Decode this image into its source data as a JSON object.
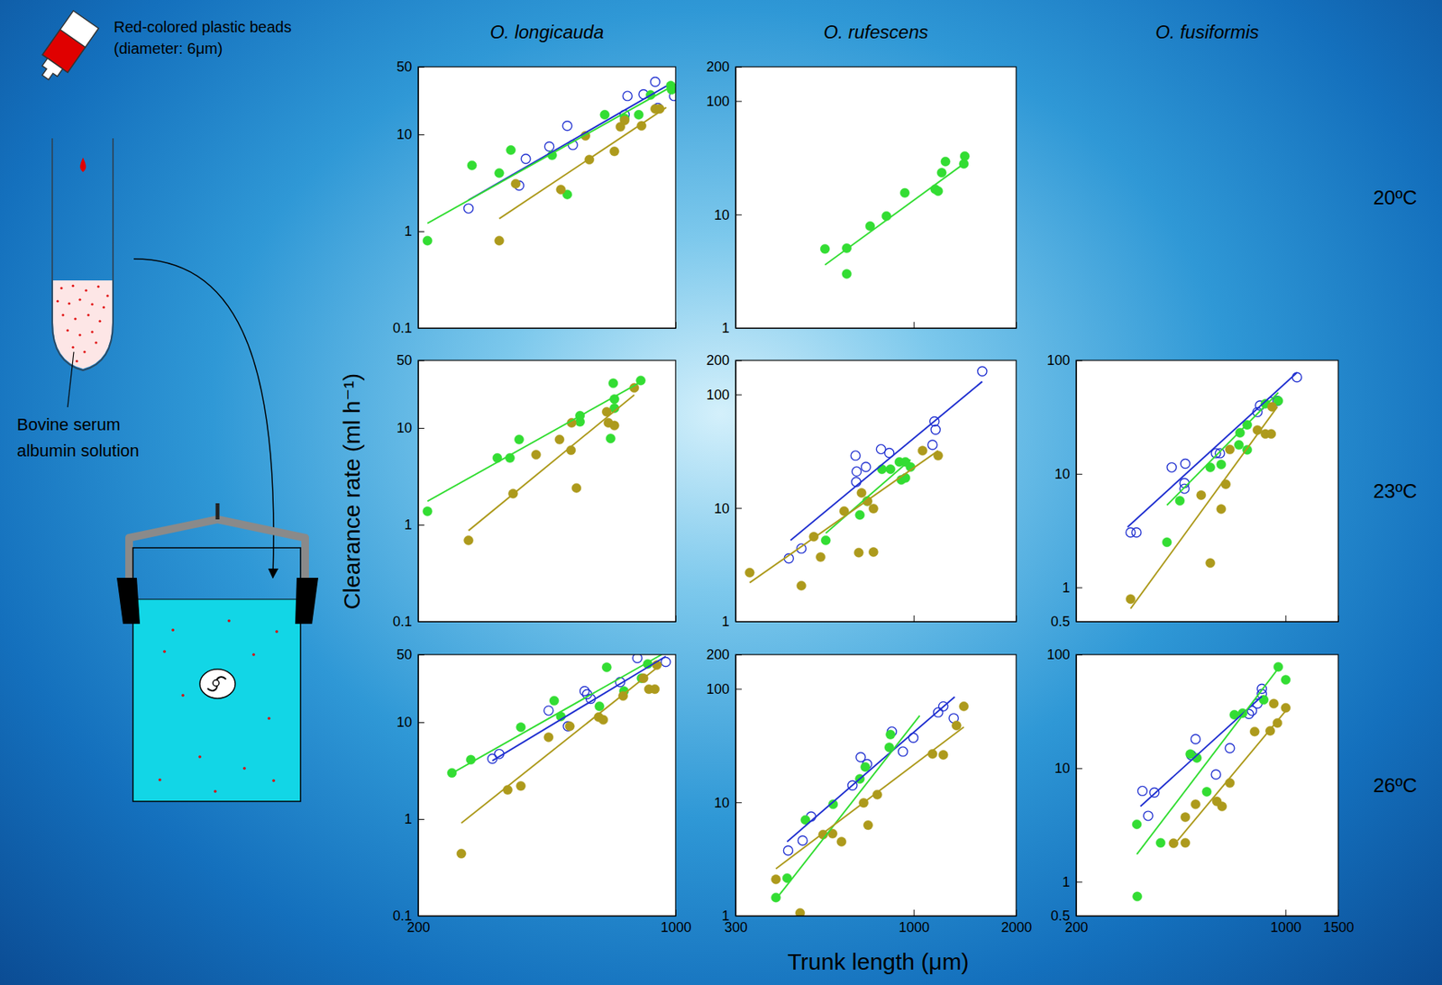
{
  "figure": {
    "column_titles": [
      "O. longicauda",
      "O. rufescens",
      "O. fusiformis"
    ],
    "row_titles": [
      "20ºC",
      "23ºC",
      "26ºC"
    ],
    "y_label": "Clearance rate (ml h⁻¹)",
    "x_label": "Trunk length (μm)"
  },
  "diagram": {
    "beads_label": [
      "Red-colored plastic beads",
      "(diameter: 6μm)"
    ],
    "bsa_label": [
      "Bovine serum",
      "albumin solution"
    ]
  },
  "chart_data": [
    {
      "type": "scatter",
      "log": true,
      "tick_labels": "y",
      "xlim": [
        200,
        1000
      ],
      "xticks": [
        200,
        1000
      ],
      "ylim": [
        0.1,
        50
      ],
      "yticks": [
        0.1,
        1,
        10,
        50
      ],
      "series": [
        {
          "color": "#2030d0",
          "marker": "open-circle",
          "x": [
            274,
            376,
            392,
            454,
            508,
            526,
            727,
            740,
            818,
            880,
            895,
            990
          ],
          "values": [
            1.72,
            2.97,
            5.6,
            7.5,
            12.3,
            7.8,
            16,
            25,
            26,
            35,
            18.8,
            25
          ]
        },
        {
          "color": "#33dd33",
          "marker": "circle",
          "x": [
            212,
            280,
            332,
            357,
            462,
            508,
            642,
            727,
            794,
            855,
            970,
            975
          ],
          "values": [
            0.8,
            4.8,
            4.0,
            6.9,
            6.1,
            2.4,
            16,
            14.7,
            16,
            25.6,
            32,
            29
          ]
        },
        {
          "color": "#ad9a1c",
          "marker": "circle",
          "x": [
            332,
            368,
            488,
            569,
            583,
            682,
            708,
            727,
            808,
            880,
            905
          ],
          "values": [
            0.8,
            3.1,
            2.7,
            9.7,
            5.5,
            6.7,
            12,
            14,
            12.3,
            18.4,
            18.4
          ]
        },
        {
          "type": "line",
          "line_style": "solid",
          "color": "#2030d0",
          "x": [
            274,
            943
          ],
          "values": [
            2.1,
            31.6
          ]
        },
        {
          "type": "line",
          "line_style": "solid",
          "color": "#33dd33",
          "x": [
            212,
            1000
          ],
          "values": [
            1.21,
            33
          ]
        },
        {
          "type": "line",
          "line_style": "solid",
          "color": "#ad9a1c",
          "x": [
            332,
            943
          ],
          "values": [
            1.35,
            19
          ]
        }
      ]
    },
    {
      "type": "scatter",
      "log": true,
      "tick_labels": "y",
      "xlim": [
        300,
        2000
      ],
      "xticks": [
        300,
        1000,
        2000
      ],
      "ylim": [
        1,
        200
      ],
      "yticks": [
        1,
        10,
        100,
        200
      ],
      "series": [
        {
          "color": "#33dd33",
          "marker": "circle",
          "x": [
            549,
            636,
            636,
            745,
            832,
            942,
            1157,
            1180,
            1209,
            1240,
            1404,
            1413
          ],
          "values": [
            4.98,
            5.05,
            3.0,
            7.9,
            9.7,
            15.5,
            16.7,
            16.1,
            23.4,
            29.3,
            28,
            32.7
          ]
        },
        {
          "type": "line",
          "line_style": "solid",
          "color": "#33dd33",
          "x": [
            549,
            1404
          ],
          "values": [
            3.6,
            28
          ]
        }
      ]
    },
    {
      "type": "scatter",
      "log": true,
      "tick_labels": "y",
      "xlim": [
        200,
        1000
      ],
      "xticks": [
        200,
        1000
      ],
      "ylim": [
        0.1,
        50
      ],
      "yticks": [
        0.1,
        1,
        10,
        50
      ],
      "series": [
        {
          "color": "#33dd33",
          "marker": "circle",
          "x": [
            212,
            328,
            355,
            376,
            550,
            550,
            677,
            682,
            682,
            666,
            804
          ],
          "values": [
            1.38,
            4.9,
            4.9,
            7.6,
            11.6,
            13.4,
            29,
            19.9,
            16,
            7.8,
            31
          ]
        },
        {
          "color": "#ad9a1c",
          "marker": "circle",
          "x": [
            274,
            362,
            418,
            484,
            520,
            538,
            522,
            650,
            657,
            682,
            772
          ],
          "values": [
            0.69,
            2.1,
            5.3,
            7.6,
            5.9,
            2.4,
            11.3,
            14.7,
            11.3,
            10.6,
            26
          ]
        },
        {
          "type": "line",
          "line_style": "solid",
          "color": "#33dd33",
          "x": [
            212,
            818
          ],
          "values": [
            1.75,
            31
          ]
        },
        {
          "type": "line",
          "line_style": "solid",
          "color": "#ad9a1c",
          "x": [
            274,
            772
          ],
          "values": [
            0.87,
            22
          ]
        }
      ]
    },
    {
      "type": "scatter",
      "log": true,
      "tick_labels": "y",
      "xlim": [
        300,
        2000
      ],
      "xticks": [
        300,
        1000,
        2000
      ],
      "ylim": [
        1,
        200
      ],
      "yticks": [
        1,
        10,
        100,
        200
      ],
      "series": [
        {
          "color": "#2030d0",
          "marker": "open-circle",
          "x": [
            430,
            468,
            675,
            680,
            678,
            724,
            802,
            848,
            1136,
            1151,
            1160,
            1590
          ],
          "values": [
            3.6,
            4.4,
            29,
            21,
            17,
            23,
            33,
            30.6,
            36,
            58,
            49,
            160
          ]
        },
        {
          "color": "#33dd33",
          "marker": "circle",
          "x": [
            552,
            695,
            730,
            807,
            855,
            908,
            946,
            920,
            946,
            979
          ],
          "values": [
            5.2,
            8.7,
            11.5,
            22,
            22,
            25.5,
            25.5,
            17.7,
            18.4,
            23
          ]
        },
        {
          "color": "#ad9a1c",
          "marker": "circle",
          "x": [
            330,
            468,
            509,
            533,
            625,
            690,
            703,
            732,
            762,
            762,
            1062,
            1180
          ],
          "values": [
            2.7,
            2.07,
            5.6,
            3.7,
            9.4,
            4.05,
            13.6,
            11.5,
            9.9,
            4.1,
            32,
            29
          ]
        },
        {
          "type": "line",
          "line_style": "solid",
          "color": "#2030d0",
          "x": [
            435,
            1590
          ],
          "values": [
            5.2,
            130
          ]
        },
        {
          "type": "line",
          "line_style": "solid",
          "color": "#33dd33",
          "x": [
            552,
            979
          ],
          "values": [
            6,
            26.7
          ]
        },
        {
          "type": "line",
          "line_style": "solid",
          "color": "#ad9a1c",
          "x": [
            330,
            1180
          ],
          "values": [
            2.2,
            32
          ]
        }
      ]
    },
    {
      "type": "scatter",
      "log": true,
      "tick_labels": "y",
      "xlim": [
        200,
        1500
      ],
      "xticks": [
        200,
        1000,
        1500
      ],
      "ylim": [
        0.5,
        100
      ],
      "yticks": [
        0.5,
        1,
        10,
        100
      ],
      "series": [
        {
          "color": "#2030d0",
          "marker": "open-circle",
          "x": [
            304,
            318,
            417,
            463,
            460,
            460,
            586,
            604,
            806,
            822,
            896,
            940,
            1092
          ],
          "values": [
            3.05,
            3.05,
            11.4,
            12.3,
            8.3,
            7.4,
            15.2,
            15.2,
            35,
            40,
            43,
            44,
            71
          ]
        },
        {
          "color": "#33dd33",
          "marker": "circle",
          "x": [
            444,
            402,
            561,
            610,
            705,
            745,
            699,
            745,
            857,
            946
          ],
          "values": [
            5.8,
            2.5,
            11.4,
            12.1,
            23,
            27,
            18,
            16.3,
            41.5,
            44
          ]
        },
        {
          "color": "#ad9a1c",
          "marker": "circle",
          "x": [
            304,
            523,
            561,
            610,
            632,
            652,
            806,
            857,
            902,
            896
          ],
          "values": [
            0.79,
            6.5,
            1.64,
            4.9,
            8.1,
            16.4,
            24.3,
            22.5,
            39,
            22.5
          ]
        },
        {
          "type": "line",
          "line_style": "solid",
          "color": "#2030d0",
          "x": [
            297,
            1092
          ],
          "values": [
            3.4,
            78
          ]
        },
        {
          "type": "line",
          "line_style": "solid",
          "color": "#33dd33",
          "x": [
            402,
            946
          ],
          "values": [
            5.3,
            52
          ]
        },
        {
          "type": "line",
          "line_style": "solid",
          "color": "#ad9a1c",
          "x": [
            304,
            940
          ],
          "values": [
            0.65,
            39
          ]
        }
      ]
    },
    {
      "type": "scatter",
      "log": true,
      "xlim": [
        200,
        1000
      ],
      "xticks": [
        200,
        1000
      ],
      "ylim": [
        0.1,
        50
      ],
      "yticks": [
        0.1,
        1,
        10,
        50
      ],
      "series": [
        {
          "color": "#2030d0",
          "marker": "open-circle",
          "x": [
            318,
            332,
            452,
            510,
            566,
            575,
            588,
            707,
            787,
            940
          ],
          "values": [
            4.2,
            4.7,
            13.2,
            9.1,
            21,
            19.5,
            17.5,
            26,
            46,
            42
          ]
        },
        {
          "color": "#33dd33",
          "marker": "circle",
          "x": [
            247,
            278,
            380,
            468,
            488,
            621,
            650,
            724,
            840,
            808
          ],
          "values": [
            3.0,
            4.1,
            8.9,
            16.7,
            11.5,
            14.6,
            37,
            21,
            40,
            28.5
          ]
        },
        {
          "color": "#ad9a1c",
          "marker": "circle",
          "x": [
            262,
            350,
            380,
            452,
            516,
            618,
            636,
            720,
            818,
            846,
            878,
            889
          ],
          "values": [
            0.44,
            2.0,
            2.2,
            7.0,
            9.1,
            11.3,
            10.6,
            18.7,
            28.5,
            22,
            22,
            39
          ]
        },
        {
          "type": "line",
          "line_style": "solid",
          "color": "#2030d0",
          "x": [
            318,
            940
          ],
          "values": [
            4.0,
            48
          ]
        },
        {
          "type": "line",
          "line_style": "solid",
          "color": "#33dd33",
          "x": [
            244,
            916
          ],
          "values": [
            2.9,
            50
          ]
        },
        {
          "type": "line",
          "line_style": "solid",
          "color": "#ad9a1c",
          "x": [
            262,
            916
          ],
          "values": [
            0.91,
            40
          ]
        }
      ]
    },
    {
      "type": "scatter",
      "log": true,
      "xlim": [
        300,
        2000
      ],
      "xticks": [
        300,
        1000,
        2000
      ],
      "ylim": [
        1,
        200
      ],
      "yticks": [
        1,
        10,
        100,
        200
      ],
      "series": [
        {
          "color": "#2030d0",
          "marker": "open-circle",
          "x": [
            428,
            472,
            500,
            661,
            699,
            730,
            863,
            930,
            998,
            1180,
            1222,
            1311
          ],
          "values": [
            3.76,
            4.6,
            7.5,
            14.1,
            25,
            21.7,
            42,
            28,
            37,
            62,
            70,
            55
          ]
        },
        {
          "color": "#33dd33",
          "marker": "circle",
          "x": [
            394,
            425,
            481,
            580,
            695,
            721,
            848,
            855
          ],
          "values": [
            1.45,
            2.15,
            7.0,
            9.6,
            16.1,
            20.5,
            30.5,
            39.5
          ]
        },
        {
          "color": "#ad9a1c",
          "marker": "circle",
          "x": [
            394,
            464,
            542,
            578,
            614,
            713,
            735,
            782,
            1136,
            1222,
            1336,
            1404
          ],
          "values": [
            2.1,
            1.06,
            5.2,
            5.3,
            4.5,
            9.9,
            6.3,
            11.7,
            26.7,
            26.2,
            47.5,
            70
          ]
        },
        {
          "type": "line",
          "line_style": "solid",
          "color": "#2030d0",
          "x": [
            425,
            1320
          ],
          "values": [
            4.5,
            85
          ]
        },
        {
          "type": "line",
          "line_style": "solid",
          "color": "#33dd33",
          "x": [
            394,
            1042
          ],
          "values": [
            1.4,
            58
          ]
        },
        {
          "type": "line",
          "line_style": "solid",
          "color": "#ad9a1c",
          "x": [
            394,
            1404
          ],
          "values": [
            2.6,
            46
          ]
        }
      ]
    },
    {
      "type": "scatter",
      "log": true,
      "xlim": [
        200,
        1500
      ],
      "xticks": [
        200,
        1000,
        1500
      ],
      "ylim": [
        0.5,
        100
      ],
      "yticks": [
        0.5,
        1,
        10,
        100
      ],
      "series": [
        {
          "color": "#2030d0",
          "marker": "open-circle",
          "x": [
            333,
            365,
            348,
            501,
            485,
            652,
            586,
            755,
            773,
            834,
            834,
            806
          ],
          "values": [
            6.3,
            6.1,
            3.8,
            18,
            13,
            15,
            8.8,
            30,
            32,
            50,
            45,
            37
          ]
        },
        {
          "color": "#33dd33",
          "marker": "circle",
          "x": [
            319,
            320,
            383,
            481,
            506,
            546,
            675,
            719,
            846,
            946,
            1002
          ],
          "values": [
            3.2,
            0.74,
            2.2,
            13.3,
            12.3,
            6.2,
            29.5,
            30.5,
            40,
            78,
            60
          ]
        },
        {
          "color": "#ad9a1c",
          "marker": "circle",
          "x": [
            423,
            463,
            463,
            501,
            590,
            614,
            652,
            789,
            889,
            914,
            940,
            1002
          ],
          "values": [
            2.18,
            3.7,
            2.2,
            4.8,
            5.1,
            4.6,
            7.4,
            21,
            21.3,
            37,
            25,
            34
          ]
        },
        {
          "type": "line",
          "line_style": "solid",
          "color": "#2030d0",
          "x": [
            328,
            834
          ],
          "values": [
            4.6,
            43
          ]
        },
        {
          "type": "line",
          "line_style": "solid",
          "color": "#33dd33",
          "x": [
            319,
            955
          ],
          "values": [
            1.74,
            78
          ]
        },
        {
          "type": "line",
          "line_style": "solid",
          "color": "#ad9a1c",
          "x": [
            436,
            1002
          ],
          "values": [
            2.3,
            32
          ]
        }
      ]
    }
  ]
}
